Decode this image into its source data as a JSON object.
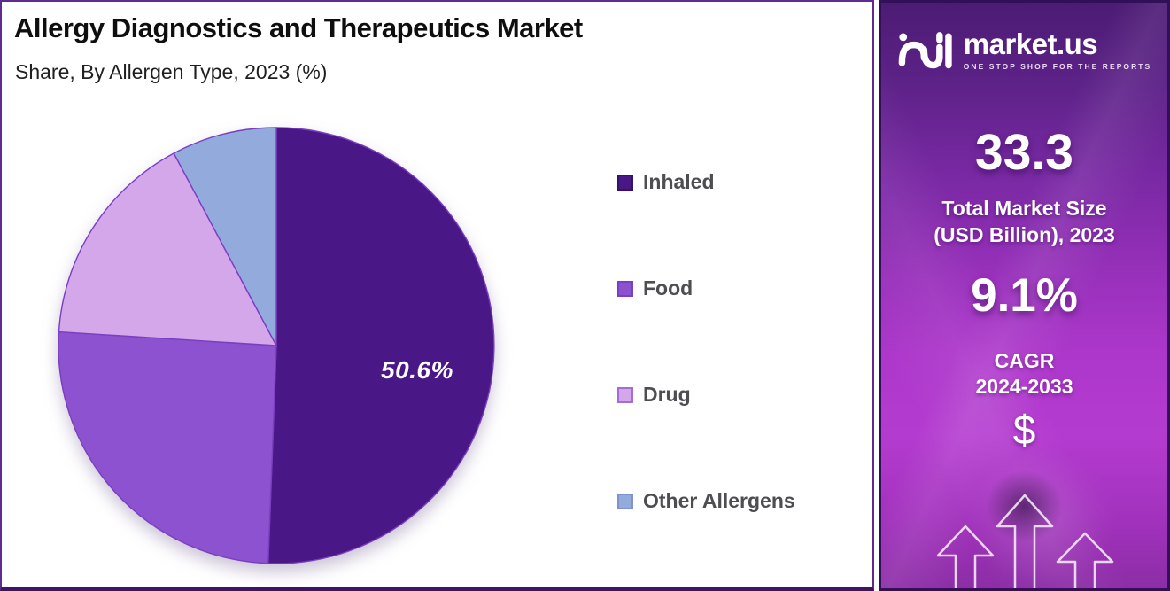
{
  "header": {
    "title": "Allergy Diagnostics and Therapeutics Market",
    "subtitle": "Share, By Allergen  Type, 2023 (%)"
  },
  "chart_data": {
    "type": "pie",
    "title": "Allergy Diagnostics and Therapeutics Market",
    "subtitle": "Share, By Allergen Type, 2023 (%)",
    "unit": "%",
    "categories": [
      "Inhaled",
      "Food",
      "Drug",
      "Other Allergens"
    ],
    "values": [
      50.6,
      25.4,
      16.2,
      7.8
    ],
    "label_text": "50.6%",
    "labeled_slice": "Inhaled",
    "colors": [
      "#4a1787",
      "#8c52cf",
      "#d4a7eb",
      "#93abdc"
    ],
    "swatch_borders": [
      "#38106b",
      "#7b3fc2",
      "#a76bd9",
      "#7e92d2"
    ],
    "slice_stroke": "#7a3ec0",
    "start_angle": "top",
    "direction": "clockwise",
    "legend_position": "right",
    "legend_on": true
  },
  "sidebar": {
    "brand": "market.us",
    "tagline": "ONE STOP SHOP FOR THE REPORTS",
    "stat1_value": "33.3",
    "stat1_label_line1": "Total Market Size",
    "stat1_label_line2": "(USD Billion), 2023",
    "stat2_value": "9.1%",
    "stat2_label_line1": "CAGR",
    "stat2_label_line2": "2024-2033",
    "currency_symbol": "$",
    "colors": {
      "gradient_top": "#4c1c74",
      "gradient_peak": "#b43bd0",
      "gradient_bottom": "#8c2da6",
      "border": "#321059"
    }
  },
  "frame": {
    "left_panel_border": "#5e2b93"
  }
}
